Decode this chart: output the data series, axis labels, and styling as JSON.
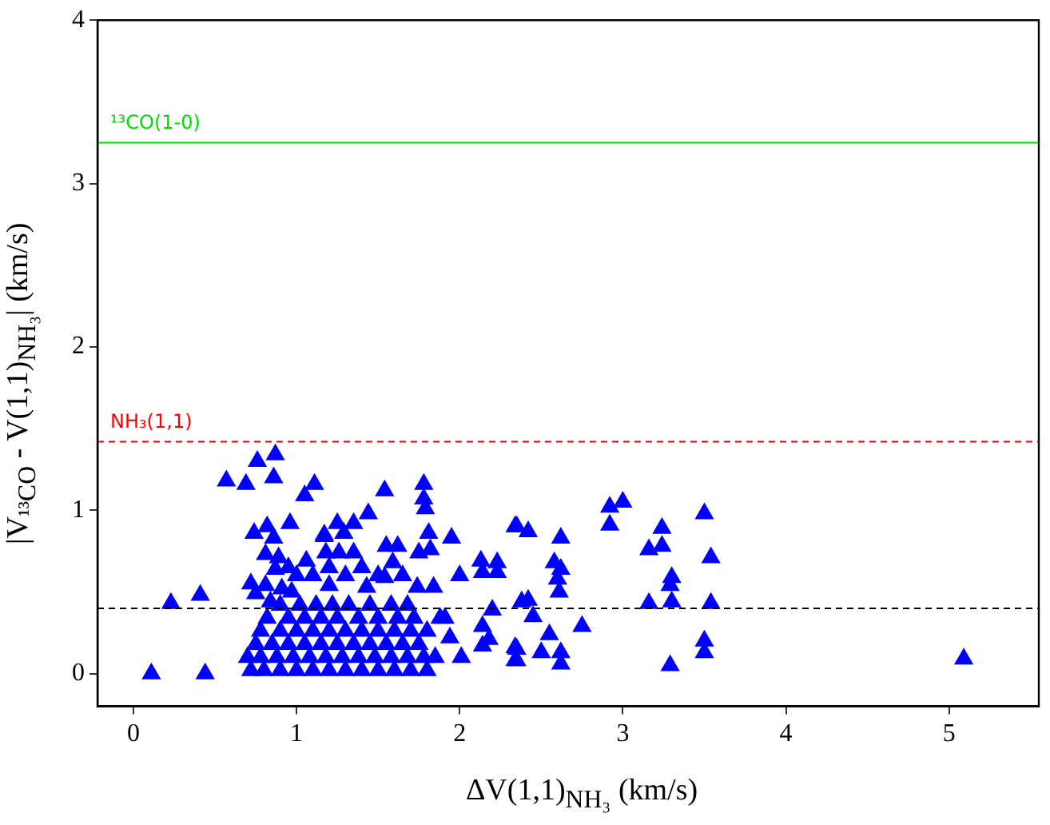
{
  "chart_data": {
    "type": "scatter",
    "xlabel": "ΔV(1,1)$_{NH₃}$ (km/s)",
    "ylabel": "|V$_{¹³CO}$ - V(1,1)$_{NH₃}$| (km/s)",
    "xlim": [
      -0.22,
      5.55
    ],
    "ylim": [
      -0.2,
      4
    ],
    "xticks": [
      0,
      1,
      2,
      3,
      4,
      5
    ],
    "yticks": [
      0,
      1,
      2,
      3,
      4
    ],
    "grid": false,
    "legend": false,
    "marker": "triangle",
    "ref_lines": [
      {
        "axis": "y",
        "value": 3.25,
        "label": "¹³CO(1-0)",
        "color": "#00dd00",
        "line_style": "solid"
      },
      {
        "axis": "y",
        "value": 1.42,
        "label": "NH₃(1,1)",
        "color": "#ff0000",
        "line_style": "dashed"
      },
      {
        "axis": "y",
        "value": 0.4,
        "label": null,
        "color": "#000000",
        "line_style": "dashed"
      }
    ],
    "series": [
      {
        "color": "#0000ff",
        "x": [
          0.87,
          0.76,
          0.57,
          0.69,
          0.86,
          1.11,
          1.05,
          0.23,
          0.41,
          0.11,
          0.44,
          0.74,
          0.82,
          0.96,
          1.17,
          0.86,
          0.81,
          0.89,
          0.87,
          0.72,
          0.81,
          0.91,
          0.75,
          0.84,
          1.54,
          1.78,
          1.78,
          1.79,
          1.44,
          1.25,
          1.35,
          1.17,
          1.29,
          1.81,
          1.95,
          2.34,
          1.55,
          1.62,
          1.75,
          1.82,
          1.06,
          1.18,
          1.26,
          1.35,
          1.59,
          2.13,
          2.23,
          2.0,
          2.14,
          2.23,
          1.43,
          1.54,
          1.74,
          1.84,
          0.97,
          1.2,
          2.38,
          2.2,
          1.91,
          2.14,
          2.18,
          2.14,
          1.94,
          2.01,
          2.34,
          2.34,
          2.35,
          2.42,
          2.62,
          2.92,
          3.0,
          2.92,
          3.24,
          3.5,
          3.16,
          3.24,
          3.54,
          2.58,
          2.62,
          2.6,
          2.61,
          3.3,
          3.29,
          2.42,
          2.45,
          3.16,
          3.3,
          3.54,
          2.75,
          2.55,
          2.35,
          2.5,
          2.62,
          2.62,
          2.35,
          3.5,
          3.5,
          3.29,
          5.09,
          0.72,
          0.8,
          0.9,
          1.0,
          1.1,
          1.2,
          1.3,
          1.4,
          1.5,
          1.6,
          1.7,
          1.8,
          0.7,
          0.78,
          0.88,
          0.98,
          1.08,
          1.18,
          1.28,
          1.38,
          1.48,
          1.58,
          1.68,
          1.78,
          1.85,
          0.75,
          0.85,
          0.95,
          1.05,
          1.15,
          1.25,
          1.35,
          1.45,
          1.55,
          1.65,
          1.75,
          0.78,
          0.9,
          1.0,
          1.1,
          1.2,
          1.3,
          1.4,
          1.5,
          1.6,
          1.7,
          1.8,
          0.82,
          0.95,
          1.05,
          1.15,
          1.25,
          1.38,
          1.5,
          1.62,
          1.72,
          1.88,
          0.9,
          1.02,
          1.12,
          1.22,
          1.32,
          1.45,
          1.58,
          1.68,
          1.0,
          1.1,
          1.3,
          1.5,
          1.65,
          0.95,
          1.2,
          1.4
        ],
        "values": [
          1.34,
          1.3,
          1.18,
          1.16,
          1.2,
          1.16,
          1.09,
          0.43,
          0.48,
          0.0,
          0.0,
          0.86,
          0.9,
          0.92,
          0.85,
          0.83,
          0.73,
          0.71,
          0.64,
          0.55,
          0.54,
          0.52,
          0.49,
          0.44,
          1.12,
          1.16,
          1.07,
          1.01,
          0.98,
          0.92,
          0.92,
          0.84,
          0.86,
          0.86,
          0.83,
          0.9,
          0.78,
          0.78,
          0.74,
          0.76,
          0.69,
          0.74,
          0.74,
          0.74,
          0.68,
          0.69,
          0.68,
          0.6,
          0.62,
          0.62,
          0.53,
          0.59,
          0.53,
          0.53,
          0.5,
          0.54,
          0.44,
          0.39,
          0.34,
          0.29,
          0.21,
          0.17,
          0.22,
          0.1,
          0.16,
          0.08,
          0.9,
          0.87,
          0.83,
          1.02,
          1.05,
          0.91,
          0.89,
          0.98,
          0.76,
          0.78,
          0.71,
          0.68,
          0.64,
          0.58,
          0.5,
          0.59,
          0.54,
          0.45,
          0.35,
          0.43,
          0.44,
          0.43,
          0.29,
          0.24,
          0.15,
          0.13,
          0.13,
          0.06,
          0.08,
          0.2,
          0.13,
          0.05,
          0.09,
          0.02,
          0.02,
          0.02,
          0.02,
          0.02,
          0.02,
          0.02,
          0.02,
          0.02,
          0.02,
          0.02,
          0.02,
          0.1,
          0.1,
          0.1,
          0.1,
          0.1,
          0.1,
          0.1,
          0.1,
          0.1,
          0.1,
          0.1,
          0.1,
          0.1,
          0.18,
          0.18,
          0.18,
          0.18,
          0.18,
          0.18,
          0.18,
          0.18,
          0.18,
          0.18,
          0.18,
          0.26,
          0.26,
          0.26,
          0.26,
          0.26,
          0.26,
          0.26,
          0.26,
          0.26,
          0.26,
          0.26,
          0.34,
          0.34,
          0.34,
          0.34,
          0.34,
          0.34,
          0.34,
          0.34,
          0.34,
          0.34,
          0.42,
          0.42,
          0.42,
          0.42,
          0.42,
          0.42,
          0.42,
          0.42,
          0.6,
          0.6,
          0.6,
          0.6,
          0.6,
          0.65,
          0.65,
          0.65
        ]
      }
    ]
  }
}
